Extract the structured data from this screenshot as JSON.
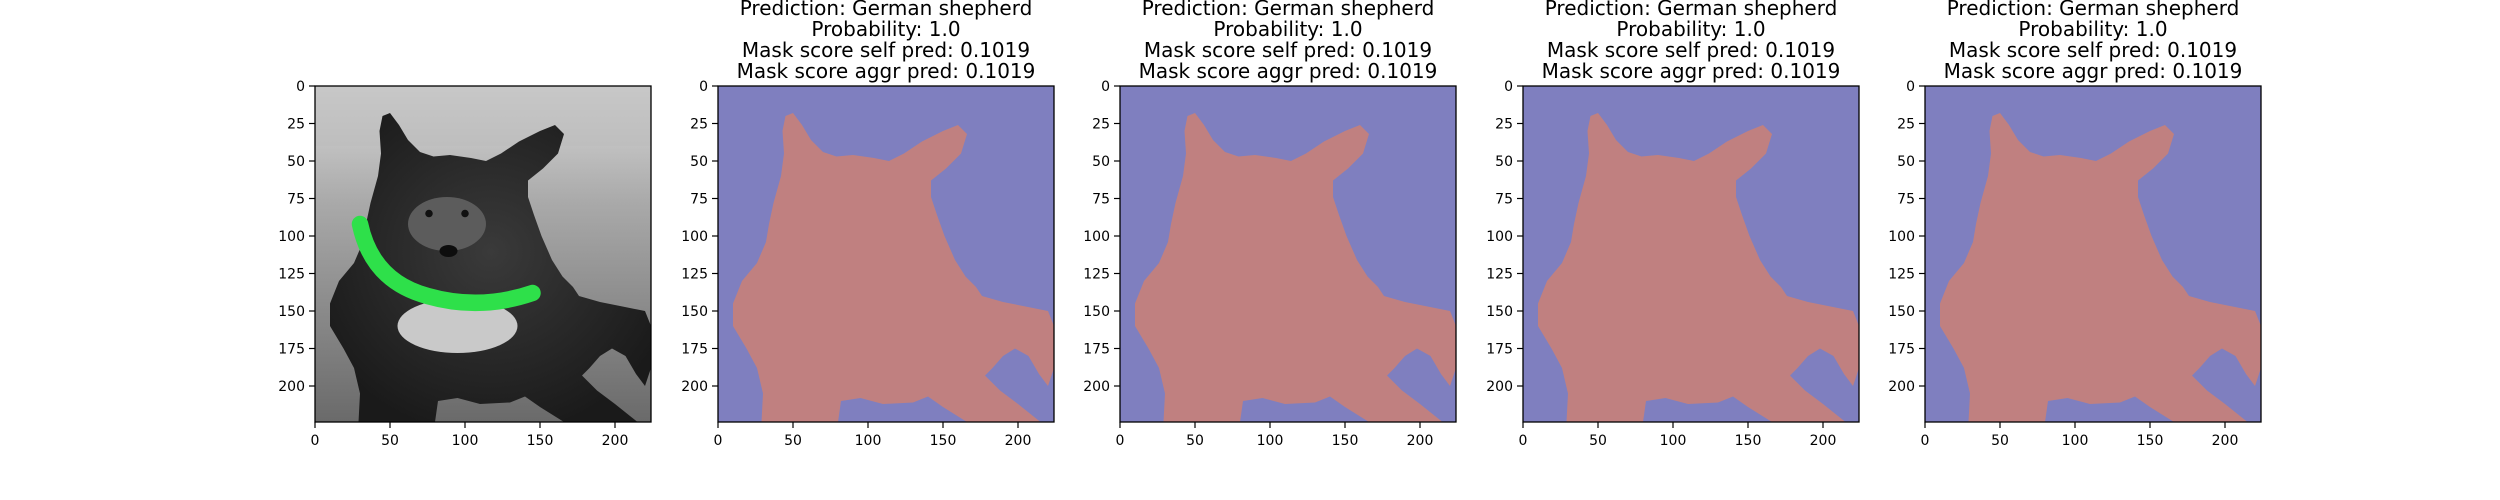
{
  "figure": {
    "panel_count": 5
  },
  "chart_data": [
    {
      "type": "image",
      "title": [],
      "xlim": [
        0,
        224
      ],
      "ylim": [
        224,
        0
      ],
      "xticks": [
        0,
        50,
        100,
        150,
        200
      ],
      "yticks": [
        0,
        25,
        50,
        75,
        100,
        125,
        150,
        175,
        200
      ],
      "image": {
        "description_keys": [
          "grayscale-photo",
          "german-shepherd",
          "green-collar"
        ],
        "collar_color": "#2ee04a"
      }
    },
    {
      "type": "heatmap",
      "title": [
        "Prediction: German shepherd",
        "Probability: 1.0",
        "Mask score self pred: 0.1019",
        "Mask score aggr pred: 0.1019"
      ],
      "xlim": [
        0,
        224
      ],
      "ylim": [
        224,
        0
      ],
      "xticks": [
        0,
        50,
        100,
        150,
        200
      ],
      "yticks": [
        0,
        25,
        50,
        75,
        100,
        125,
        150,
        175,
        200
      ],
      "colors": {
        "background": "#7f7fbf",
        "mask": "#c08080"
      }
    },
    {
      "type": "heatmap",
      "title": [
        "Prediction: German shepherd",
        "Probability: 1.0",
        "Mask score self pred: 0.1019",
        "Mask score aggr pred: 0.1019"
      ],
      "xlim": [
        0,
        224
      ],
      "ylim": [
        224,
        0
      ],
      "xticks": [
        0,
        50,
        100,
        150,
        200
      ],
      "yticks": [
        0,
        25,
        50,
        75,
        100,
        125,
        150,
        175,
        200
      ],
      "colors": {
        "background": "#7f7fbf",
        "mask": "#c08080"
      }
    },
    {
      "type": "heatmap",
      "title": [
        "Prediction: German shepherd",
        "Probability: 1.0",
        "Mask score self pred: 0.1019",
        "Mask score aggr pred: 0.1019"
      ],
      "xlim": [
        0,
        224
      ],
      "ylim": [
        224,
        0
      ],
      "xticks": [
        0,
        50,
        100,
        150,
        200
      ],
      "yticks": [
        0,
        25,
        50,
        75,
        100,
        125,
        150,
        175,
        200
      ],
      "colors": {
        "background": "#7f7fbf",
        "mask": "#c08080"
      }
    },
    {
      "type": "heatmap",
      "title": [
        "Prediction: German shepherd",
        "Probability: 1.0",
        "Mask score self pred: 0.1019",
        "Mask score aggr pred: 0.1019"
      ],
      "xlim": [
        0,
        224
      ],
      "ylim": [
        224,
        0
      ],
      "xticks": [
        0,
        50,
        100,
        150,
        200
      ],
      "yticks": [
        0,
        25,
        50,
        75,
        100,
        125,
        150,
        175,
        200
      ],
      "colors": {
        "background": "#7f7fbf",
        "mask": "#c08080"
      }
    }
  ]
}
